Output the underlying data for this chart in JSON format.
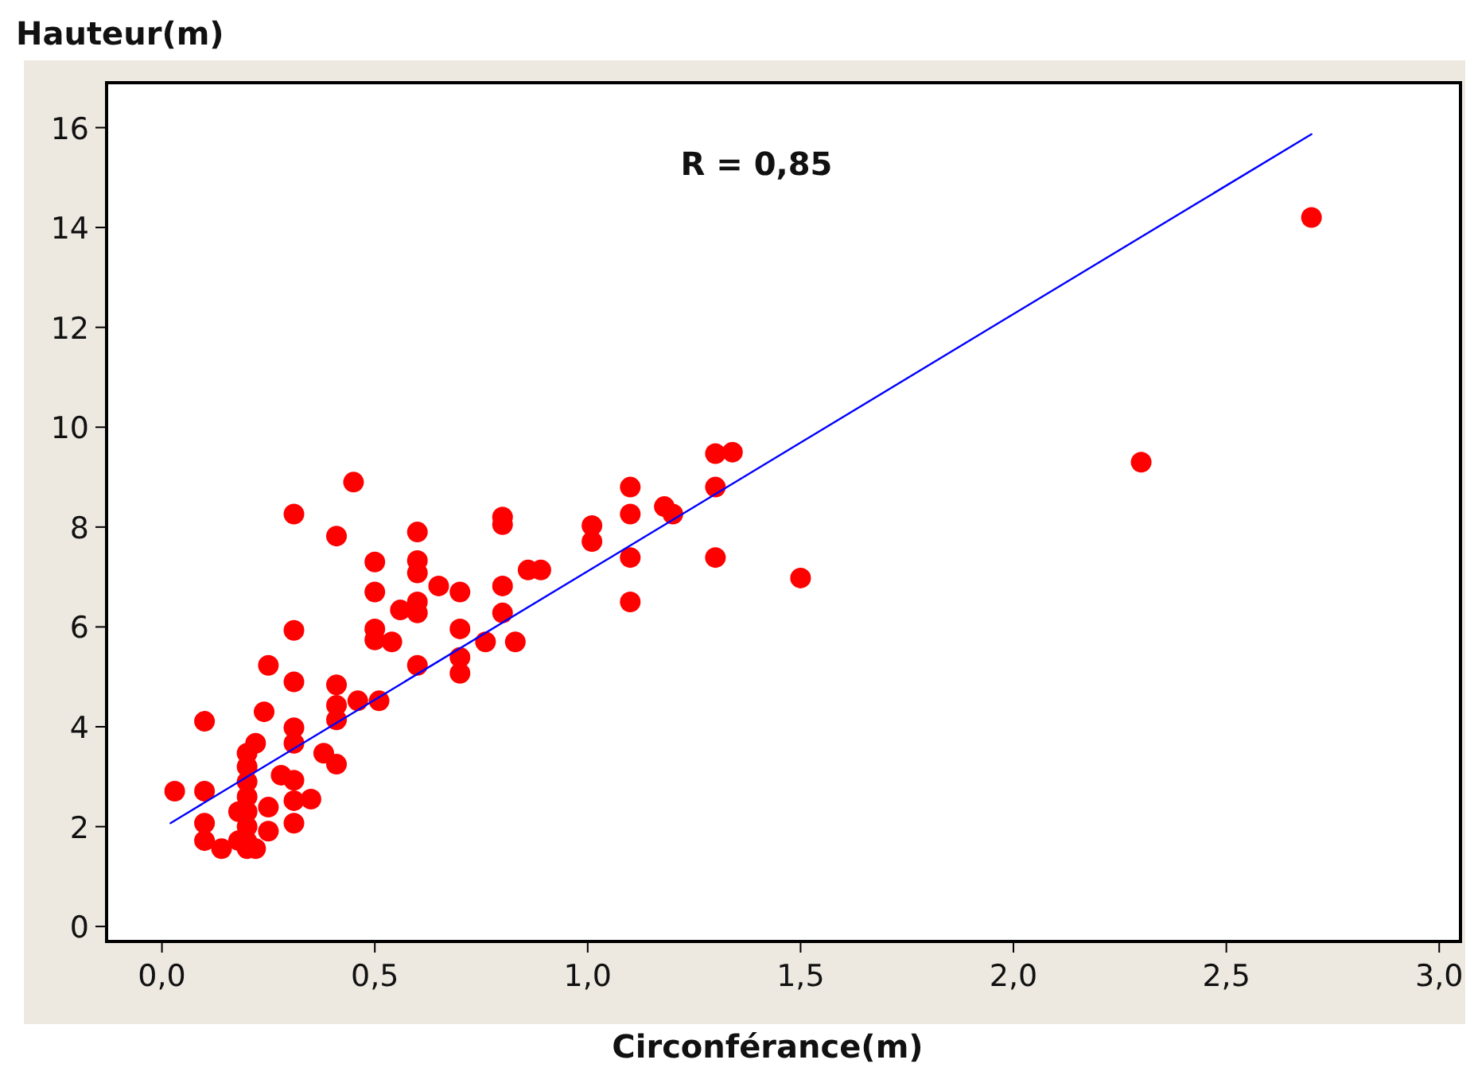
{
  "chart_data": {
    "type": "scatter",
    "xlabel": "Circonférance(m)",
    "ylabel": "Hauteur(m)",
    "annotations": [
      "R = 0,85"
    ],
    "xlim": [
      -0.13,
      3.05
    ],
    "ylim": [
      -0.3,
      16.9
    ],
    "xticks": [
      {
        "value": 0,
        "label": "0,0"
      },
      {
        "value": 0.5,
        "label": "0,5"
      },
      {
        "value": 1,
        "label": "1,0"
      },
      {
        "value": 1.5,
        "label": "1,5"
      },
      {
        "value": 2,
        "label": "2,0"
      },
      {
        "value": 2.5,
        "label": "2,5"
      },
      {
        "value": 3,
        "label": "3,0"
      }
    ],
    "yticks": [
      0,
      2,
      4,
      6,
      8,
      10,
      12,
      14,
      16
    ],
    "grid": false,
    "marker": "circle",
    "series": [
      {
        "color": "#ff0000",
        "x": [
          0.45,
          0.31,
          0.41,
          0.8,
          0.8,
          0.6,
          0.5,
          0.6,
          0.6,
          0.86,
          0.89,
          0.65,
          0.7,
          0.5,
          0.8,
          0.6,
          0.56,
          0.6,
          0.8,
          0.5,
          0.5,
          0.54,
          0.7,
          0.76,
          0.83,
          0.6,
          0.7,
          0.7,
          0.31,
          0.25,
          0.31,
          0.41,
          0.41,
          0.46,
          0.51,
          0.41,
          0.24,
          0.1,
          0.31,
          0.31,
          0.38,
          0.41,
          0.22,
          0.2,
          0.2,
          0.2,
          0.2,
          0.2,
          0.2,
          0.2,
          0.2,
          0.28,
          0.31,
          0.35,
          0.31,
          0.25,
          0.03,
          0.1,
          0.1,
          0.1,
          0.14,
          0.18,
          0.22,
          0.25,
          0.31,
          0.18,
          1.01,
          1.01,
          1.1,
          1.1,
          1.18,
          1.2,
          1.1,
          1.1,
          1.3,
          1.34,
          1.3,
          1.3,
          1.5,
          2.3,
          2.7
        ],
        "values": [
          8.9,
          8.26,
          7.82,
          8.2,
          8.05,
          7.9,
          7.3,
          7.33,
          7.08,
          7.14,
          7.14,
          6.82,
          6.7,
          6.7,
          6.82,
          6.5,
          6.34,
          6.28,
          6.28,
          5.96,
          5.74,
          5.7,
          5.96,
          5.7,
          5.7,
          5.23,
          5.39,
          5.07,
          5.93,
          5.23,
          4.9,
          4.84,
          4.43,
          4.52,
          4.52,
          4.14,
          4.3,
          4.11,
          3.98,
          3.67,
          3.47,
          3.25,
          3.67,
          3.47,
          3.2,
          2.9,
          2.6,
          2.3,
          2.0,
          1.7,
          1.56,
          3.03,
          2.93,
          2.55,
          2.52,
          2.39,
          2.71,
          2.71,
          2.07,
          1.72,
          1.56,
          1.72,
          1.56,
          1.91,
          2.07,
          2.3,
          8.03,
          7.71,
          8.8,
          8.26,
          8.41,
          8.26,
          7.39,
          6.5,
          9.47,
          9.5,
          8.8,
          7.39,
          6.98,
          9.3,
          14.2
        ]
      },
      {
        "type": "line",
        "color": "#0000ff",
        "marker": "none",
        "x": [
          0.02,
          2.7
        ],
        "values": [
          2.07,
          15.87
        ]
      }
    ]
  }
}
